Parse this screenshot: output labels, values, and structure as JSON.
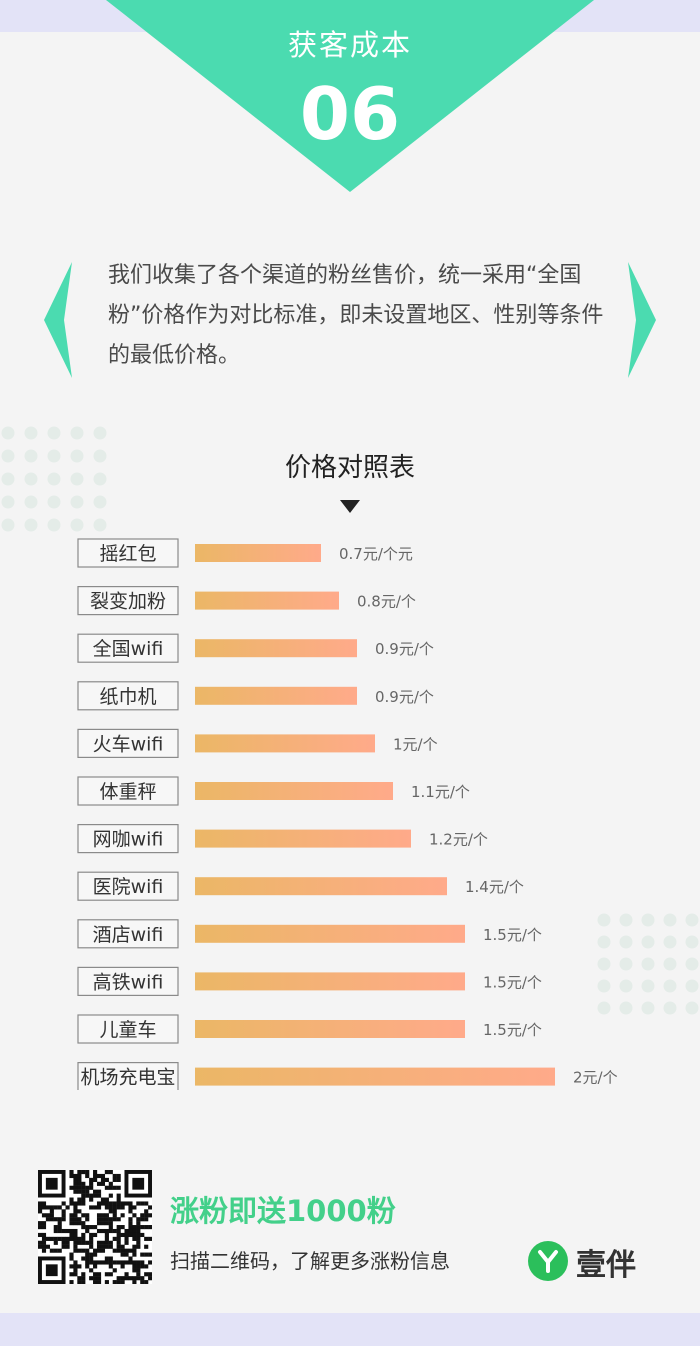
{
  "header": {
    "section_title": "获客成本",
    "section_number": "06",
    "accent_color": "#4bdbb0"
  },
  "intro": {
    "text": "我们收集了各个渠道的粉丝售价，统一采用“全国粉”价格作为对比标准，即未设置地区、性别等条件的最低价格。"
  },
  "chart_data": {
    "type": "bar",
    "orientation": "horizontal",
    "title": "价格对照表",
    "categories": [
      "摇红包",
      "裂变加粉",
      "全国wifi",
      "纸巾机",
      "火车wifi",
      "体重秤",
      "网咖wifi",
      "医院wifi",
      "酒店wifi",
      "高铁wifi",
      "儿童车",
      "机场充电宝"
    ],
    "values": [
      0.7,
      0.8,
      0.9,
      0.9,
      1,
      1.1,
      1.2,
      1.4,
      1.5,
      1.5,
      1.5,
      2
    ],
    "value_labels": [
      "0.7元/个元",
      "0.8元/个",
      "0.9元/个",
      "0.9元/个",
      "1元/个",
      "1.1元/个",
      "1.2元/个",
      "1.4元/个",
      "1.5元/个",
      "1.5元/个",
      "1.5元/个",
      "2元/个"
    ],
    "xlim": [
      0,
      2
    ],
    "bar_color_start": "#ebb766",
    "bar_color_end": "#ffaa8a",
    "grid": false
  },
  "promo": {
    "title": "涨粉即送1000粉",
    "subtitle": "扫描二维码，了解更多涨粉信息"
  },
  "brand": {
    "name": "壹伴",
    "logo_color": "#2bbf5b"
  }
}
